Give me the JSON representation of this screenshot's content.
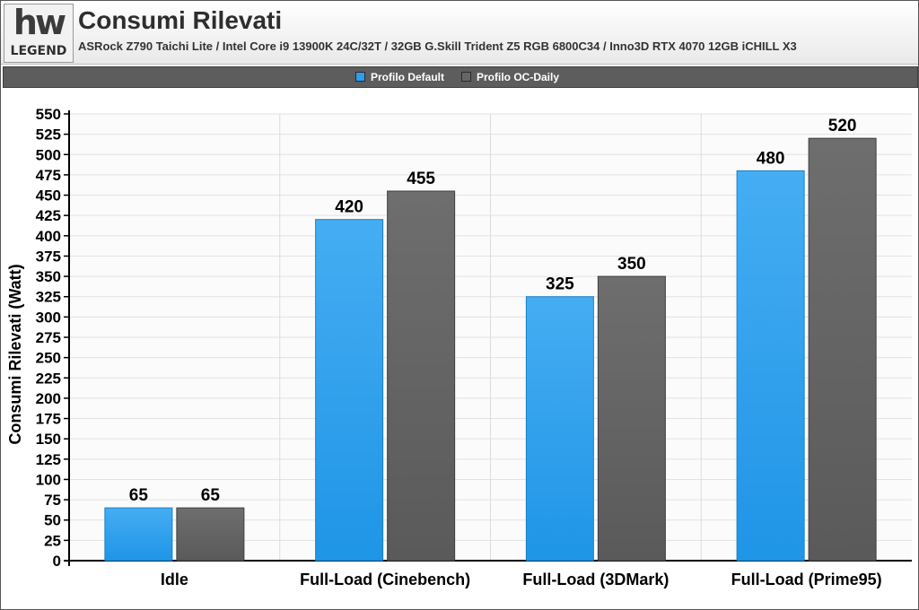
{
  "header": {
    "logo_text": "hwLEGEND",
    "title": "Consumi Rilevati",
    "subtitle": "ASRock Z790 Taichi Lite / Intel Core i9 13900K 24C/32T / 32GB G.Skill Trident Z5 RGB 6800C34 / Inno3D RTX 4070 12GB iCHILL X3"
  },
  "colors": {
    "default": "#2b9fec",
    "oc": "#666666",
    "legend_bg": "#5d5d5d"
  },
  "chart_data": {
    "type": "bar",
    "title": "Consumi Rilevati",
    "ylabel": "Consumi Rilevati (Watt)",
    "xlabel": "",
    "categories": [
      "Idle",
      "Full-Load (Cinebench)",
      "Full-Load (3DMark)",
      "Full-Load (Prime95)"
    ],
    "series": [
      {
        "name": "Profilo Default",
        "values": [
          65,
          420,
          325,
          480
        ]
      },
      {
        "name": "Profilo OC-Daily",
        "values": [
          65,
          455,
          350,
          520
        ]
      }
    ],
    "ylim": [
      0,
      550
    ],
    "ytick_step": 25,
    "grid": true,
    "legend_position": "top-center",
    "data_labels": true
  }
}
